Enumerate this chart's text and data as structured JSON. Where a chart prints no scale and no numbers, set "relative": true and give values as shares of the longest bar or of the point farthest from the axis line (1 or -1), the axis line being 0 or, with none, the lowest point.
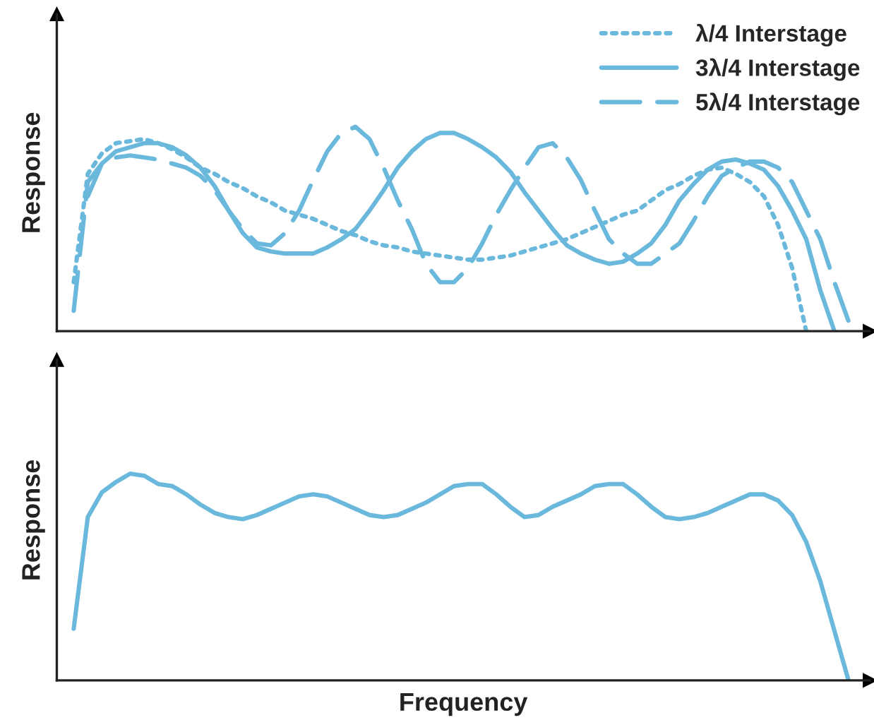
{
  "chart_data": [
    {
      "type": "line",
      "ylabel": "Response",
      "relative": true,
      "legend": "top right",
      "tick_labels": false,
      "categories": [
        null,
        null,
        null,
        null,
        null,
        null,
        null,
        null,
        null,
        null,
        null,
        null,
        null,
        null,
        null,
        null,
        null,
        null,
        null,
        null,
        null,
        null,
        null,
        null,
        null,
        null,
        null,
        null,
        null,
        null,
        null,
        null,
        null,
        null,
        null,
        null,
        null,
        null,
        null,
        null,
        null,
        null,
        null,
        null,
        null,
        null,
        null,
        null,
        null,
        null,
        null,
        null,
        null,
        null,
        null,
        null,
        null,
        null
      ],
      "series": [
        {
          "name": "λ/4 Interstage",
          "color": "#6ab8dc",
          "line_style": "dotted",
          "values": [
            null,
            0.24,
            0.77,
            0.87,
            0.92,
            0.93,
            0.94,
            0.92,
            0.89,
            0.85,
            0.8,
            0.77,
            0.73,
            0.7,
            0.66,
            0.63,
            0.59,
            0.57,
            0.55,
            0.52,
            0.49,
            0.47,
            0.44,
            0.42,
            0.41,
            0.39,
            0.38,
            0.37,
            0.36,
            0.35,
            0.35,
            0.36,
            0.37,
            0.39,
            0.41,
            0.43,
            0.45,
            0.48,
            0.51,
            0.54,
            0.57,
            0.59,
            0.64,
            0.69,
            0.72,
            0.76,
            0.79,
            0.8,
            0.77,
            0.73,
            0.66,
            0.52,
            0.31,
            0,
            null,
            null,
            null,
            null
          ]
        },
        {
          "name": "3λ/4 Interstage",
          "color": "#6ab8dc",
          "line_style": "solid",
          "values": [
            null,
            null,
            0.66,
            0.82,
            0.88,
            0.9,
            0.92,
            0.92,
            0.9,
            0.86,
            0.8,
            0.71,
            0.59,
            0.48,
            0.41,
            0.39,
            0.38,
            0.38,
            0.38,
            0.41,
            0.45,
            0.5,
            0.59,
            0.69,
            0.8,
            0.88,
            0.94,
            0.97,
            0.97,
            0.94,
            0.9,
            0.85,
            0.78,
            0.68,
            0.59,
            0.5,
            0.42,
            0.38,
            0.35,
            0.33,
            0.34,
            0.38,
            0.43,
            0.52,
            0.64,
            0.72,
            0.79,
            0.83,
            0.84,
            0.82,
            0.79,
            0.71,
            0.59,
            0.45,
            0.2,
            0,
            null,
            null
          ]
        },
        {
          "name": "5λ/4 Interstage",
          "color": "#6ab8dc",
          "line_style": "dashed",
          "values": [
            null,
            0.1,
            0.73,
            0.82,
            0.85,
            0.86,
            0.85,
            0.84,
            0.82,
            0.8,
            0.76,
            0.69,
            0.59,
            0.5,
            0.43,
            0.42,
            0.48,
            0.59,
            0.74,
            0.88,
            0.97,
            1.0,
            0.94,
            0.8,
            0.64,
            0.5,
            0.33,
            0.24,
            0.24,
            0.31,
            0.43,
            0.57,
            0.69,
            0.8,
            0.9,
            0.92,
            0.85,
            0.74,
            0.59,
            0.45,
            0.38,
            0.33,
            0.33,
            0.38,
            0.43,
            0.54,
            0.66,
            0.76,
            0.8,
            0.83,
            0.83,
            0.8,
            0.73,
            0.59,
            0.45,
            0.24,
            0.05,
            null
          ]
        }
      ]
    },
    {
      "type": "line",
      "ylabel": "Response",
      "xlabel": "Frequency",
      "relative": true,
      "tick_labels": false,
      "categories": [
        null,
        null,
        null,
        null,
        null,
        null,
        null,
        null,
        null,
        null,
        null,
        null,
        null,
        null,
        null,
        null,
        null,
        null,
        null,
        null,
        null,
        null,
        null,
        null,
        null,
        null,
        null,
        null,
        null,
        null,
        null,
        null,
        null,
        null,
        null,
        null,
        null,
        null,
        null,
        null,
        null,
        null,
        null,
        null,
        null,
        null,
        null,
        null,
        null,
        null,
        null,
        null,
        null,
        null,
        null,
        null,
        null,
        null
      ],
      "series": [
        {
          "color": "#6ab8dc",
          "line_style": "solid",
          "values": [
            null,
            0.25,
            0.79,
            0.91,
            0.96,
            1.0,
            0.99,
            0.95,
            0.94,
            0.9,
            0.85,
            0.81,
            0.79,
            0.78,
            0.8,
            0.83,
            0.86,
            0.89,
            0.9,
            0.89,
            0.86,
            0.83,
            0.8,
            0.79,
            0.8,
            0.83,
            0.86,
            0.9,
            0.94,
            0.95,
            0.95,
            0.9,
            0.84,
            0.79,
            0.8,
            0.84,
            0.87,
            0.9,
            0.94,
            0.95,
            0.95,
            0.9,
            0.84,
            0.79,
            0.78,
            0.79,
            0.81,
            0.84,
            0.87,
            0.9,
            0.9,
            0.87,
            0.8,
            0.67,
            0.48,
            0.24,
            0,
            null
          ]
        }
      ]
    }
  ]
}
